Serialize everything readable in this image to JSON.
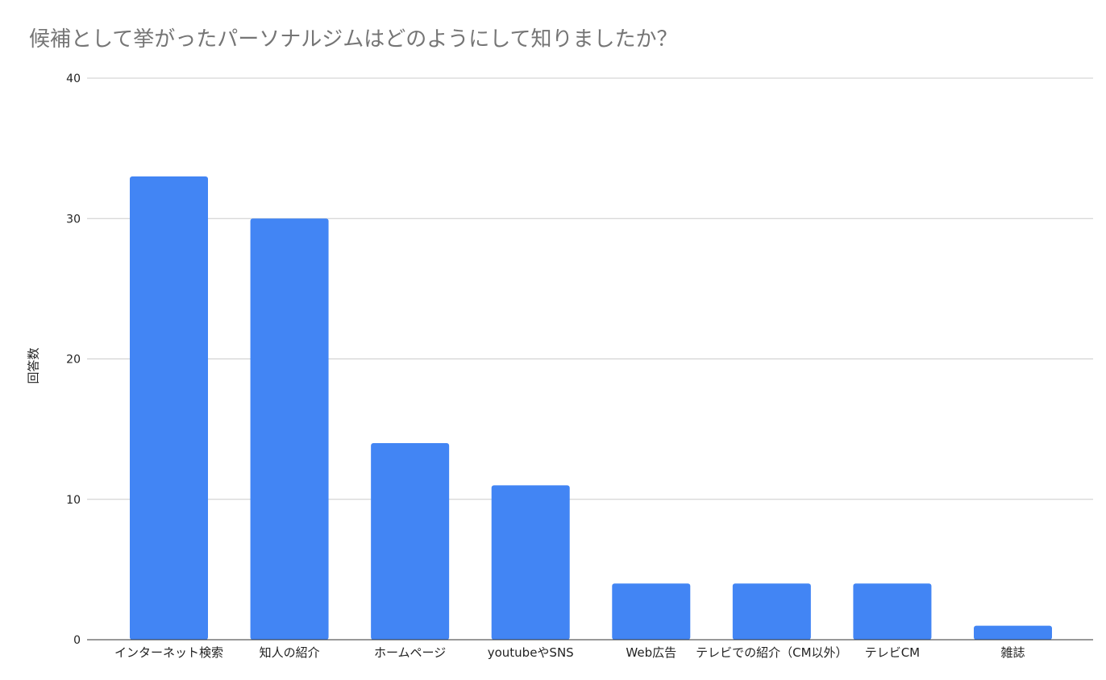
{
  "chart_data": {
    "type": "bar",
    "title": "候補として挙がったパーソナルジムはどのようにして知りましたか？",
    "xlabel": "",
    "ylabel": "回答数",
    "categories": [
      "インターネット検索",
      "知人の紹介",
      "ホームページ",
      "youtubeやSNS",
      "Web広告",
      "テレビでの紹介（CM以外）",
      "テレビCM",
      "雑誌"
    ],
    "values": [
      33,
      30,
      14,
      11,
      4,
      4,
      4,
      1
    ],
    "ylim": [
      0,
      40
    ],
    "yticks": [
      "0",
      "10",
      "20",
      "30",
      "40"
    ],
    "grid": true,
    "legend": "none",
    "colors": {
      "bar": "#4285f4",
      "grid": "#cccccc",
      "axis": "#333333",
      "title": "#757575",
      "text": "#222222"
    }
  }
}
